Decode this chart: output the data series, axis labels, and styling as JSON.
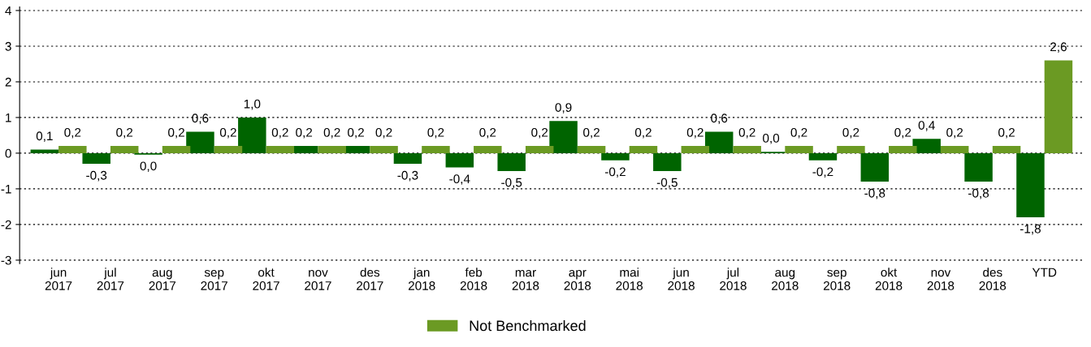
{
  "chart_data": {
    "type": "bar",
    "categories": [
      "jun\n2017",
      "jul\n2017",
      "aug\n2017",
      "sep\n2017",
      "okt\n2017",
      "nov\n2017",
      "des\n2017",
      "jan\n2018",
      "feb\n2018",
      "mar\n2018",
      "apr\n2018",
      "mai\n2018",
      "jun\n2018",
      "jul\n2018",
      "aug\n2018",
      "sep\n2018",
      "okt\n2018",
      "nov\n2018",
      "des\n2018",
      "YTD"
    ],
    "series": [
      {
        "color": "#006400",
        "values": [
          0.1,
          -0.3,
          -0.04,
          0.6,
          1.0,
          0.2,
          0.2,
          -0.3,
          -0.4,
          -0.5,
          0.9,
          -0.2,
          -0.5,
          0.6,
          0.04,
          -0.2,
          -0.8,
          0.4,
          -0.8,
          -1.8
        ],
        "value_labels": [
          "0,1",
          "-0,3",
          "0,0",
          "0,6",
          "1,0",
          "0,2",
          "0,2",
          "-0,3",
          "-0,4",
          "-0,5",
          "0,9",
          "-0,2",
          "-0,5",
          "0,6",
          "0,0",
          "-0,2",
          "-0,8",
          "0,4",
          "-0,8",
          "-1,8"
        ]
      },
      {
        "name": "Not Benchmarked",
        "color": "#6b9a23",
        "values": [
          0.2,
          0.2,
          0.2,
          0.2,
          0.2,
          0.2,
          0.2,
          0.2,
          0.2,
          0.2,
          0.2,
          0.2,
          0.2,
          0.2,
          0.2,
          0.2,
          0.2,
          0.2,
          0.2,
          2.6
        ],
        "value_labels": [
          "0,2",
          "0,2",
          "0,2",
          "0,2",
          "0,2",
          "0,2",
          "0,2",
          "0,2",
          "0,2",
          "0,2",
          "0,2",
          "0,2",
          "0,2",
          "0,2",
          "0,2",
          "0,2",
          "0,2",
          "0,2",
          "0,2",
          "2,6"
        ]
      }
    ],
    "ylim": [
      -3.1,
      4.1
    ],
    "yticks": [
      -3,
      -2,
      -1,
      0,
      1,
      2,
      3,
      4
    ],
    "grid": "y",
    "legend": "bottom left"
  }
}
